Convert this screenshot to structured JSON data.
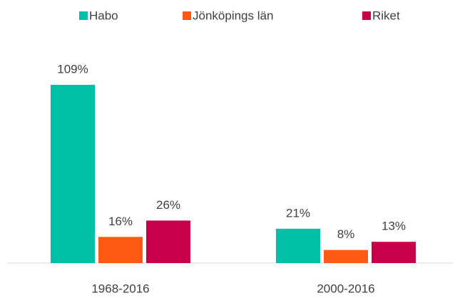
{
  "chart_data": {
    "type": "bar",
    "categories": [
      "1968-2016",
      "2000-2016"
    ],
    "series": [
      {
        "name": "Habo",
        "color": "#00c0a8",
        "values": [
          109,
          21
        ],
        "value_labels": [
          "109%",
          "21%"
        ]
      },
      {
        "name": "Jönköpings län",
        "color": "#ff5a14",
        "values": [
          16,
          8
        ],
        "value_labels": [
          "16%",
          "8%"
        ]
      },
      {
        "name": "Riket",
        "color": "#c8004a",
        "values": [
          26,
          13
        ],
        "value_labels": [
          "26%",
          "13%"
        ]
      }
    ],
    "legend": "top"
  }
}
